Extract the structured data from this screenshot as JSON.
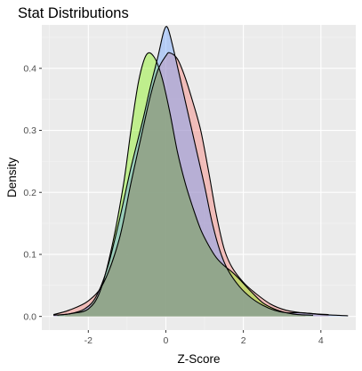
{
  "chart_data": {
    "type": "area",
    "title": "Stat Distributions",
    "xlabel": "Z-Score",
    "ylabel": "Density",
    "xlim": [
      -3.2,
      4.9
    ],
    "ylim": [
      -0.022,
      0.47
    ],
    "x_ticks": [
      -2,
      0,
      2,
      4
    ],
    "x_tick_labels": [
      "-2",
      "0",
      "2",
      "4"
    ],
    "y_ticks": [
      0.0,
      0.1,
      0.2,
      0.3,
      0.4
    ],
    "y_tick_labels": [
      "0.0",
      "0.1",
      "0.2",
      "0.3",
      "0.4"
    ],
    "grid": true,
    "legend": "none",
    "colors": {
      "panel_bg": "#ebebeb",
      "grid_major": "#ffffff",
      "grid_minor": "#f5f5f5",
      "outline": "#000000"
    },
    "series": [
      {
        "fill": "#f8766d",
        "points": [
          [
            -2.9,
            0.003
          ],
          [
            -2.5,
            0.01
          ],
          [
            -2.0,
            0.025
          ],
          [
            -1.6,
            0.055
          ],
          [
            -1.2,
            0.125
          ],
          [
            -0.9,
            0.215
          ],
          [
            -0.6,
            0.3
          ],
          [
            -0.4,
            0.355
          ],
          [
            -0.2,
            0.398
          ],
          [
            0.0,
            0.42
          ],
          [
            0.1,
            0.425
          ],
          [
            0.3,
            0.415
          ],
          [
            0.5,
            0.385
          ],
          [
            0.7,
            0.345
          ],
          [
            0.9,
            0.3
          ],
          [
            1.1,
            0.235
          ],
          [
            1.3,
            0.165
          ],
          [
            1.5,
            0.11
          ],
          [
            1.7,
            0.08
          ],
          [
            2.0,
            0.055
          ],
          [
            2.3,
            0.038
          ],
          [
            2.7,
            0.02
          ],
          [
            3.1,
            0.01
          ],
          [
            3.5,
            0.006
          ],
          [
            3.9,
            0.004
          ],
          [
            4.2,
            0.003
          ]
        ]
      },
      {
        "fill": "#7cf200",
        "points": [
          [
            -2.8,
            0.002
          ],
          [
            -2.4,
            0.005
          ],
          [
            -2.0,
            0.012
          ],
          [
            -1.7,
            0.04
          ],
          [
            -1.4,
            0.11
          ],
          [
            -1.1,
            0.21
          ],
          [
            -0.9,
            0.3
          ],
          [
            -0.7,
            0.38
          ],
          [
            -0.5,
            0.422
          ],
          [
            -0.3,
            0.418
          ],
          [
            -0.1,
            0.385
          ],
          [
            0.1,
            0.33
          ],
          [
            0.3,
            0.265
          ],
          [
            0.5,
            0.215
          ],
          [
            0.7,
            0.175
          ],
          [
            0.9,
            0.14
          ],
          [
            1.1,
            0.115
          ],
          [
            1.3,
            0.095
          ],
          [
            1.5,
            0.082
          ],
          [
            1.7,
            0.072
          ],
          [
            1.9,
            0.06
          ],
          [
            2.2,
            0.04
          ],
          [
            2.5,
            0.022
          ],
          [
            2.8,
            0.012
          ],
          [
            3.1,
            0.006
          ],
          [
            3.4,
            0.003
          ],
          [
            3.8,
            0.002
          ]
        ]
      },
      {
        "fill": "#619cff",
        "points": [
          [
            -2.9,
            0.002
          ],
          [
            -2.5,
            0.004
          ],
          [
            -2.1,
            0.012
          ],
          [
            -1.8,
            0.032
          ],
          [
            -1.5,
            0.08
          ],
          [
            -1.2,
            0.155
          ],
          [
            -0.9,
            0.24
          ],
          [
            -0.6,
            0.315
          ],
          [
            -0.4,
            0.37
          ],
          [
            -0.2,
            0.42
          ],
          [
            -0.05,
            0.46
          ],
          [
            0.05,
            0.465
          ],
          [
            0.2,
            0.43
          ],
          [
            0.4,
            0.375
          ],
          [
            0.6,
            0.32
          ],
          [
            0.8,
            0.265
          ],
          [
            1.0,
            0.21
          ],
          [
            1.2,
            0.15
          ],
          [
            1.4,
            0.105
          ],
          [
            1.6,
            0.075
          ],
          [
            1.9,
            0.048
          ],
          [
            2.2,
            0.03
          ],
          [
            2.5,
            0.018
          ],
          [
            2.8,
            0.01
          ],
          [
            3.1,
            0.006
          ],
          [
            3.4,
            0.006
          ],
          [
            3.7,
            0.005
          ],
          [
            4.0,
            0.003
          ],
          [
            4.4,
            0.002
          ],
          [
            4.7,
            0.001
          ]
        ]
      }
    ],
    "overlap_fill": "#8f9f83"
  }
}
